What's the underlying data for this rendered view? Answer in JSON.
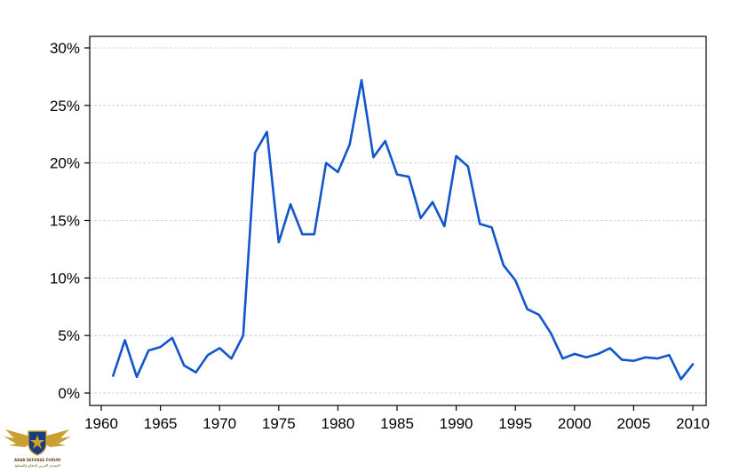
{
  "chart_data": {
    "type": "line",
    "title": "",
    "xlabel": "",
    "ylabel": "",
    "xlim": [
      1960,
      2011
    ],
    "ylim": [
      0,
      0.3
    ],
    "x_ticks": [
      1960,
      1965,
      1970,
      1975,
      1980,
      1985,
      1990,
      1995,
      2000,
      2005,
      2010
    ],
    "y_ticks": [
      0,
      0.05,
      0.1,
      0.15,
      0.2,
      0.25,
      0.3
    ],
    "y_tick_labels": [
      "0%",
      "5%",
      "10%",
      "15%",
      "20%",
      "25%",
      "30%"
    ],
    "grid": "horizontal",
    "series": [
      {
        "color": "#1155cc",
        "x": [
          1961,
          1962,
          1963,
          1964,
          1965,
          1966,
          1967,
          1968,
          1969,
          1970,
          1971,
          1972,
          1973,
          1974,
          1975,
          1976,
          1977,
          1978,
          1979,
          1980,
          1981,
          1982,
          1983,
          1984,
          1985,
          1986,
          1987,
          1988,
          1989,
          1990,
          1991,
          1992,
          1993,
          1994,
          1995,
          1996,
          1997,
          1998,
          1999,
          2000,
          2001,
          2002,
          2003,
          2004,
          2005,
          2006,
          2007,
          2008,
          2009,
          2010
        ],
        "values": [
          0.015,
          0.046,
          0.014,
          0.037,
          0.04,
          0.048,
          0.024,
          0.018,
          0.033,
          0.039,
          0.03,
          0.05,
          0.209,
          0.227,
          0.131,
          0.164,
          0.138,
          0.138,
          0.2,
          0.192,
          0.216,
          0.272,
          0.205,
          0.219,
          0.19,
          0.188,
          0.152,
          0.166,
          0.145,
          0.206,
          0.197,
          0.147,
          0.144,
          0.111,
          0.098,
          0.073,
          0.068,
          0.052,
          0.03,
          0.034,
          0.031,
          0.034,
          0.039,
          0.029,
          0.028,
          0.031,
          0.03,
          0.033,
          0.012,
          0.025
        ]
      }
    ]
  },
  "watermark": {
    "brand": "ARAB DEFENSE FORUM",
    "tagline": "المنتدى العربي للدفاع والتسليح",
    "colors": {
      "gold": "#c9a032",
      "dark": "#3a2a10",
      "blue": "#1a3e7a"
    }
  }
}
